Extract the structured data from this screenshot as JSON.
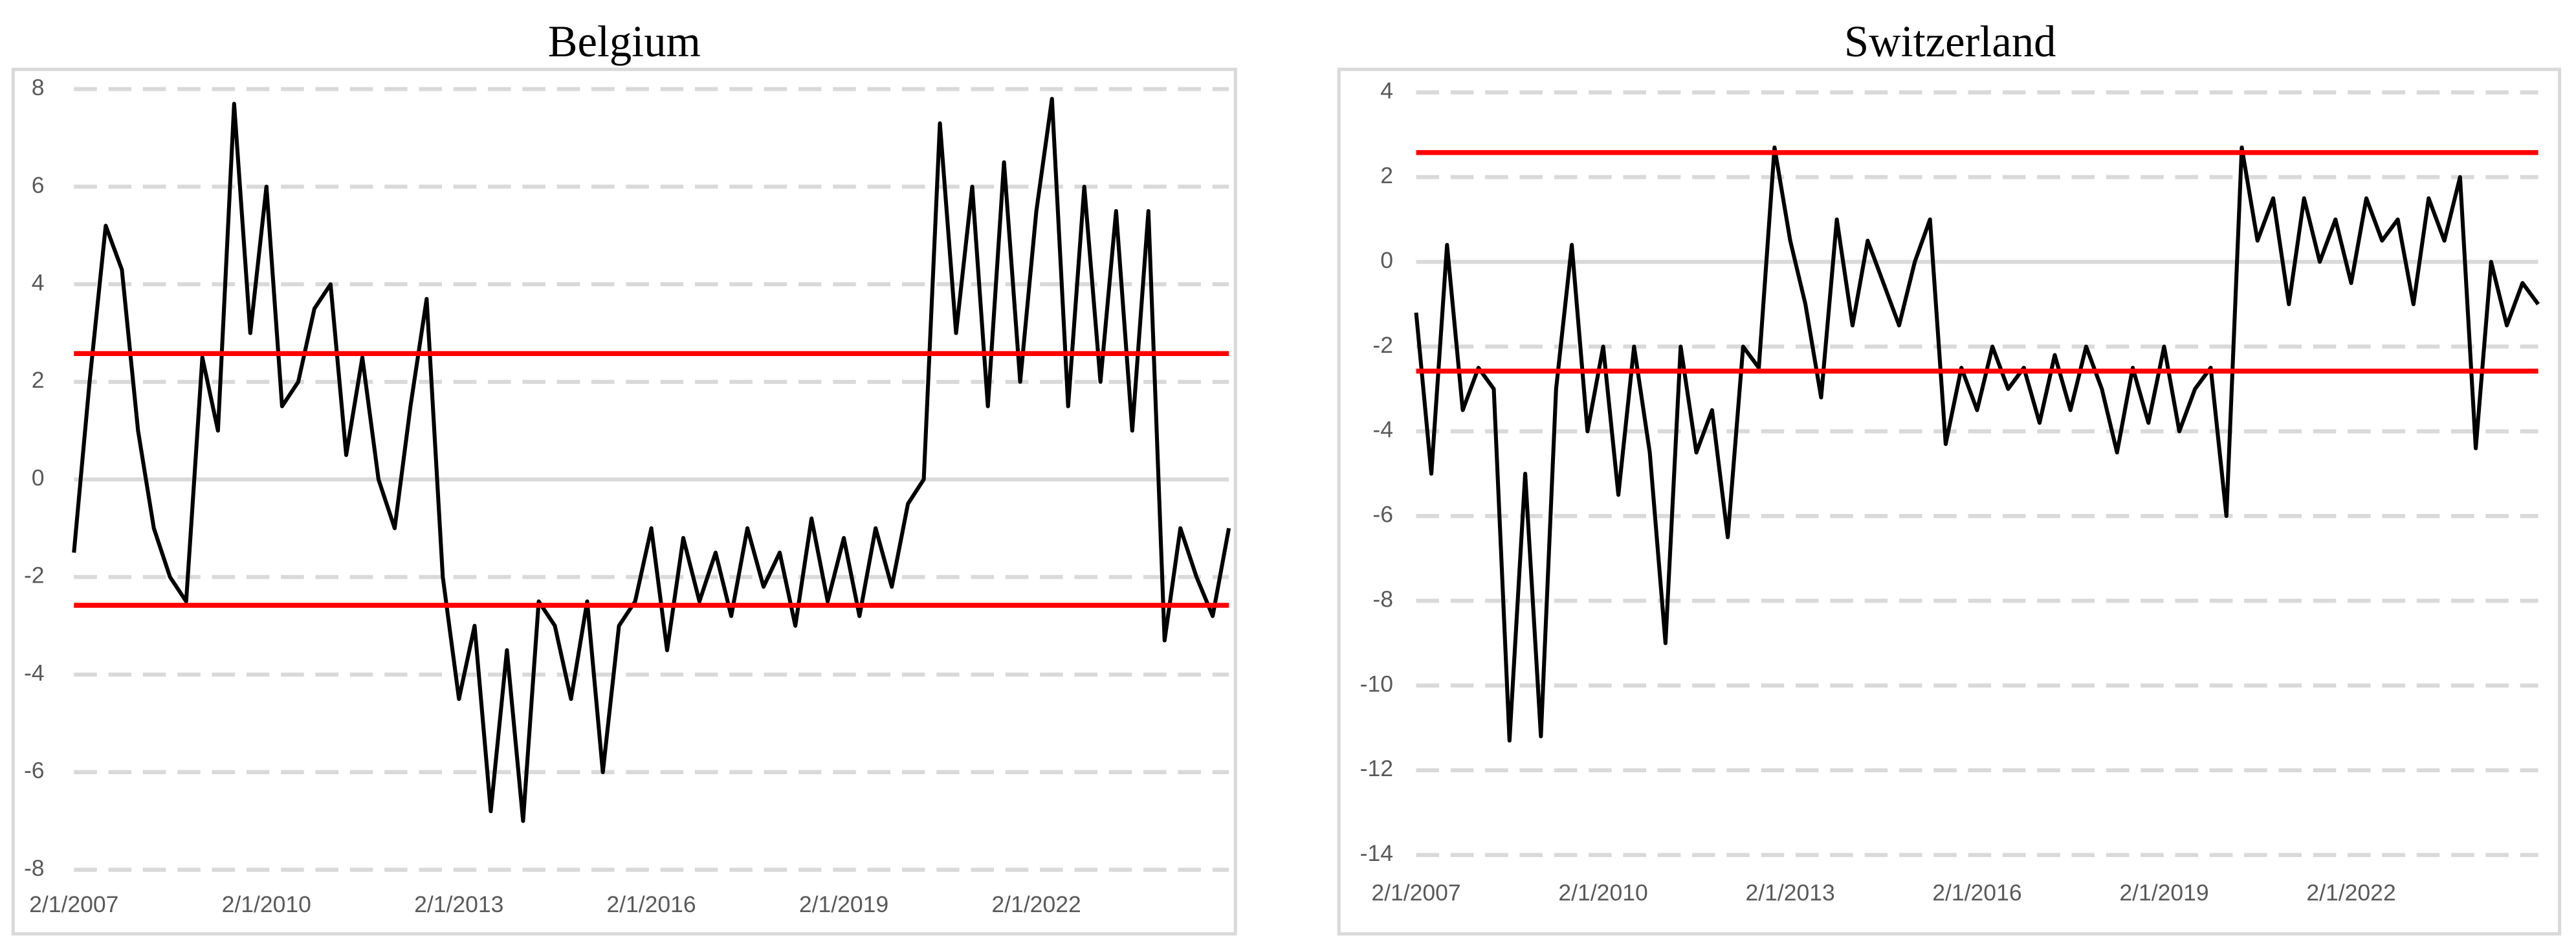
{
  "chart_data": [
    {
      "type": "line",
      "title": "Belgium",
      "color": "#000000",
      "grid": true,
      "x": [
        "2/1/2007",
        "5/1/2007",
        "8/1/2007",
        "11/1/2007",
        "2/1/2008",
        "5/1/2008",
        "8/1/2008",
        "11/1/2008",
        "2/1/2009",
        "5/1/2009",
        "8/1/2009",
        "11/1/2009",
        "2/1/2010",
        "5/1/2010",
        "8/1/2010",
        "11/1/2010",
        "2/1/2011",
        "5/1/2011",
        "8/1/2011",
        "11/1/2011",
        "2/1/2012",
        "5/1/2012",
        "8/1/2012",
        "11/1/2012",
        "2/1/2013",
        "5/1/2013",
        "8/1/2013",
        "11/1/2013",
        "2/1/2014",
        "5/1/2014",
        "8/1/2014",
        "11/1/2014",
        "2/1/2015",
        "5/1/2015",
        "8/1/2015",
        "11/1/2015",
        "2/1/2016",
        "5/1/2016",
        "8/1/2016",
        "11/1/2016",
        "2/1/2017",
        "5/1/2017",
        "8/1/2017",
        "11/1/2017",
        "2/1/2018",
        "5/1/2018",
        "8/1/2018",
        "11/1/2018",
        "2/1/2019",
        "5/1/2019",
        "8/1/2019",
        "11/1/2019",
        "2/1/2020",
        "5/1/2020",
        "8/1/2020",
        "11/1/2020",
        "2/1/2021",
        "5/1/2021",
        "8/1/2021",
        "11/1/2021",
        "2/1/2022",
        "5/1/2022",
        "8/1/2022",
        "11/1/2022",
        "2/1/2023",
        "5/1/2023",
        "8/1/2023",
        "11/1/2023",
        "2/1/2024",
        "5/1/2024",
        "8/1/2024",
        "11/1/2024",
        "2/1/2025"
      ],
      "values": [
        -1.5,
        2.0,
        5.2,
        4.3,
        1.0,
        -1.0,
        -2.0,
        -2.5,
        2.5,
        1.0,
        7.7,
        3.0,
        6.0,
        1.5,
        2.0,
        3.5,
        4.0,
        0.5,
        2.5,
        0.0,
        -1.0,
        1.5,
        3.7,
        -2.0,
        -4.5,
        -3.0,
        -6.8,
        -3.5,
        -7.0,
        -2.5,
        -3.0,
        -4.5,
        -2.5,
        -6.0,
        -3.0,
        -2.5,
        -1.0,
        -3.5,
        -1.2,
        -2.5,
        -1.5,
        -2.8,
        -1.0,
        -2.2,
        -1.5,
        -3.0,
        -0.8,
        -2.5,
        -1.2,
        -2.8,
        -1.0,
        -2.2,
        -0.5,
        0.0,
        7.3,
        3.0,
        6.0,
        1.5,
        6.5,
        2.0,
        5.5,
        7.8,
        1.5,
        6.0,
        2.0,
        5.5,
        1.0,
        5.5,
        -3.3,
        -1.0,
        -2.0,
        -2.8,
        -1.0
      ],
      "xlim": [
        "2/1/2007",
        "2/1/2025"
      ],
      "xticks": [
        "2/1/2007",
        "2/1/2010",
        "2/1/2013",
        "2/1/2016",
        "2/1/2019",
        "2/1/2022"
      ],
      "ylim": [
        -8,
        8
      ],
      "yticks": [
        -8,
        -6,
        -4,
        -2,
        0,
        2,
        4,
        6,
        8
      ],
      "reference_lines": [
        {
          "value": 2.58,
          "color": "#ff0000"
        },
        {
          "value": -2.58,
          "color": "#ff0000"
        }
      ]
    },
    {
      "type": "line",
      "title": "Switzerland",
      "color": "#000000",
      "grid": true,
      "x": [
        "2/1/2007",
        "5/1/2007",
        "8/1/2007",
        "11/1/2007",
        "2/1/2008",
        "5/1/2008",
        "8/1/2008",
        "11/1/2008",
        "2/1/2009",
        "5/1/2009",
        "8/1/2009",
        "11/1/2009",
        "2/1/2010",
        "5/1/2010",
        "8/1/2010",
        "11/1/2010",
        "2/1/2011",
        "5/1/2011",
        "8/1/2011",
        "11/1/2011",
        "2/1/2012",
        "5/1/2012",
        "8/1/2012",
        "11/1/2012",
        "2/1/2013",
        "5/1/2013",
        "8/1/2013",
        "11/1/2013",
        "2/1/2014",
        "5/1/2014",
        "8/1/2014",
        "11/1/2014",
        "2/1/2015",
        "5/1/2015",
        "8/1/2015",
        "11/1/2015",
        "2/1/2016",
        "5/1/2016",
        "8/1/2016",
        "11/1/2016",
        "2/1/2017",
        "5/1/2017",
        "8/1/2017",
        "11/1/2017",
        "2/1/2018",
        "5/1/2018",
        "8/1/2018",
        "11/1/2018",
        "2/1/2019",
        "5/1/2019",
        "8/1/2019",
        "11/1/2019",
        "2/1/2020",
        "5/1/2020",
        "8/1/2020",
        "11/1/2020",
        "2/1/2021",
        "5/1/2021",
        "8/1/2021",
        "11/1/2021",
        "2/1/2022",
        "5/1/2022",
        "8/1/2022",
        "11/1/2022",
        "2/1/2023",
        "5/1/2023",
        "8/1/2023",
        "11/1/2023",
        "2/1/2024",
        "5/1/2024",
        "8/1/2024",
        "11/1/2024",
        "2/1/2025"
      ],
      "values": [
        -1.2,
        -5.0,
        0.4,
        -3.5,
        -2.5,
        -3.0,
        -11.3,
        -5.0,
        -11.2,
        -3.0,
        0.4,
        -4.0,
        -2.0,
        -5.5,
        -2.0,
        -4.5,
        -9.0,
        -2.0,
        -4.5,
        -3.5,
        -6.5,
        -2.0,
        -2.5,
        2.7,
        0.5,
        -1.0,
        -3.2,
        1.0,
        -1.5,
        0.5,
        -0.5,
        -1.5,
        0.0,
        1.0,
        -4.3,
        -2.5,
        -3.5,
        -2.0,
        -3.0,
        -2.5,
        -3.8,
        -2.2,
        -3.5,
        -2.0,
        -3.0,
        -4.5,
        -2.5,
        -3.8,
        -2.0,
        -4.0,
        -3.0,
        -2.5,
        -6.0,
        2.7,
        0.5,
        1.5,
        -1.0,
        1.5,
        0.0,
        1.0,
        -0.5,
        1.5,
        0.5,
        1.0,
        -1.0,
        1.5,
        0.5,
        2.0,
        -4.4,
        0.0,
        -1.5,
        -0.5,
        -1.0
      ],
      "xlim": [
        "2/1/2007",
        "2/1/2025"
      ],
      "xticks": [
        "2/1/2007",
        "2/1/2010",
        "2/1/2013",
        "2/1/2016",
        "2/1/2019",
        "2/1/2022"
      ],
      "ylim": [
        -14,
        4
      ],
      "yticks": [
        -14,
        -12,
        -10,
        -8,
        -6,
        -4,
        -2,
        0,
        2,
        4
      ],
      "reference_lines": [
        {
          "value": 2.58,
          "color": "#ff0000"
        },
        {
          "value": -2.58,
          "color": "#ff0000"
        }
      ]
    }
  ]
}
